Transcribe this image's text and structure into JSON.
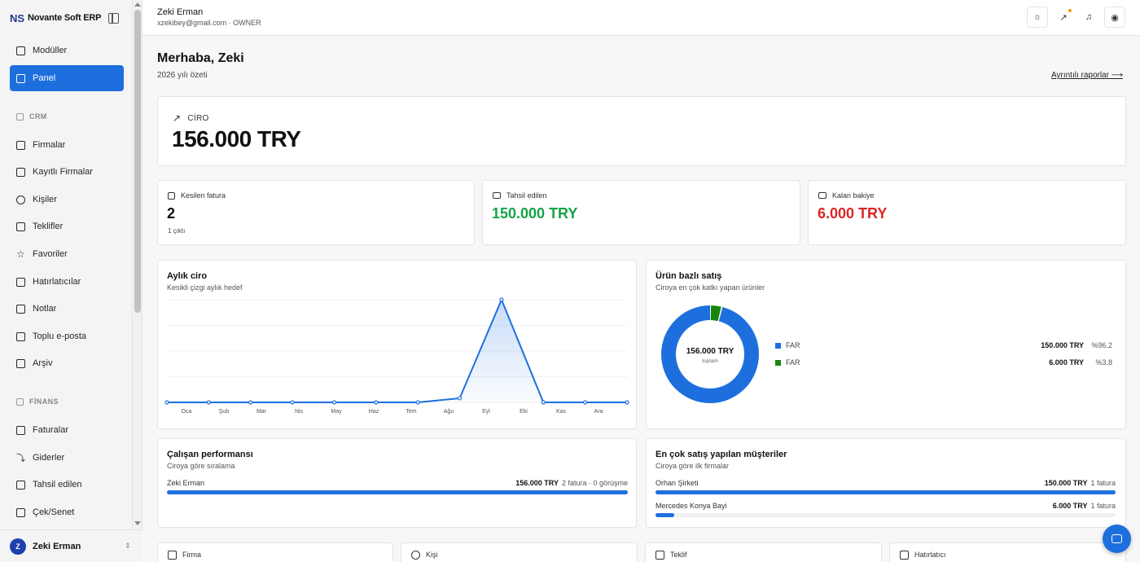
{
  "brand": {
    "name": "Novante Soft ERP",
    "logo_text": "NS"
  },
  "sidebar": {
    "items": [
      {
        "label": "Modüller",
        "icon": "grid-icon"
      },
      {
        "label": "Panel",
        "icon": "chart-bar-icon",
        "active": true
      }
    ],
    "crm_section": "CRM",
    "crm_items": [
      {
        "label": "Firmalar",
        "icon": "building-icon"
      },
      {
        "label": "Kayıtlı Firmalar",
        "icon": "list-icon"
      },
      {
        "label": "Kişiler",
        "icon": "users-icon"
      },
      {
        "label": "Teklifler",
        "icon": "document-icon"
      },
      {
        "label": "Favoriler",
        "icon": "star-icon"
      },
      {
        "label": "Hatırlatıcılar",
        "icon": "calendar-icon"
      },
      {
        "label": "Notlar",
        "icon": "note-icon"
      },
      {
        "label": "Toplu e-posta",
        "icon": "mail-icon"
      },
      {
        "label": "Arşiv",
        "icon": "archive-icon"
      }
    ],
    "finance_section": "FİNANS",
    "finance_items": [
      {
        "label": "Faturalar",
        "icon": "invoice-icon"
      },
      {
        "label": "Giderler",
        "icon": "trend-down-icon"
      },
      {
        "label": "Tahsil edilen",
        "icon": "receipt-icon"
      },
      {
        "label": "Çek/Senet",
        "icon": "banknote-icon"
      }
    ],
    "user": {
      "initial": "Z",
      "name": "Zeki Erman"
    }
  },
  "header": {
    "user_name": "Zeki Erman",
    "user_sub": "xzekibey@gmail.com · OWNER"
  },
  "main": {
    "greeting": "Merhaba, Zeki",
    "subtitle": "2026 yılı özeti",
    "report_link": "Ayrıntılı raporlar ⟶",
    "ciro": {
      "label": "CİRO",
      "value": "156.000 TRY"
    },
    "kpis": [
      {
        "label": "Kesilen fatura",
        "value": "2",
        "sub": "1 çıktı"
      },
      {
        "label": "Tahsil edilen",
        "value": "150.000 TRY",
        "color": "#16a34a"
      },
      {
        "label": "Kalan bakiye",
        "value": "6.000 TRY",
        "color": "#dc2626"
      }
    ],
    "monthly": {
      "title": "Aylık ciro",
      "subtitle": "Kesikli çizgi aylık hedef"
    },
    "product": {
      "title": "Ürün bazlı satış",
      "subtitle": "Ciroya en çok katkı yapan ürünler",
      "center_value": "156.000 TRY",
      "center_label": "toplam",
      "rows": [
        {
          "name": "FAR",
          "amount": "150.000 TRY",
          "pct": "%96.2",
          "color": "#1e6fde"
        },
        {
          "name": "FAR",
          "amount": "6.000 TRY",
          "pct": "%3.8",
          "color": "#16870c"
        }
      ]
    },
    "employees": {
      "title": "Çalışan performansı",
      "subtitle": "Ciroya göre sıralama",
      "rows": [
        {
          "name": "Zeki Erman",
          "amount": "156.000 TRY",
          "detail": "2 fatura · 0 görüşme",
          "fraction": 1.0
        }
      ]
    },
    "customers": {
      "title": "En çok satış yapılan müşteriler",
      "subtitle": "Ciroya göre ilk firmalar",
      "rows": [
        {
          "name": "Orhan Şirketi",
          "amount": "150.000 TRY",
          "detail": "1 fatura",
          "fraction": 1.0
        },
        {
          "name": "Mercedes Konya Bayi",
          "amount": "6.000 TRY",
          "detail": "1 fatura",
          "fraction": 0.04
        }
      ]
    },
    "bottom_cards": [
      {
        "label": "Firma",
        "icon": "building-icon"
      },
      {
        "label": "Kişi",
        "icon": "users-icon"
      },
      {
        "label": "Teklif",
        "icon": "document-icon"
      },
      {
        "label": "Hatırlatıcı",
        "icon": "calendar-icon"
      }
    ]
  },
  "chart_data": [
    {
      "type": "line",
      "categories": [
        "Oca",
        "Şub",
        "Mar",
        "Nis",
        "May",
        "Haz",
        "Tem",
        "Ağu",
        "Eyl",
        "Eki",
        "Kas",
        "Ara"
      ],
      "series": [
        {
          "values": [
            0,
            0,
            0,
            0,
            0,
            0,
            0,
            6000,
            150000,
            0,
            0,
            0
          ]
        }
      ]
    },
    {
      "type": "pie",
      "categories": [
        "FAR",
        "FAR"
      ],
      "values": [
        150000,
        6000
      ]
    }
  ]
}
